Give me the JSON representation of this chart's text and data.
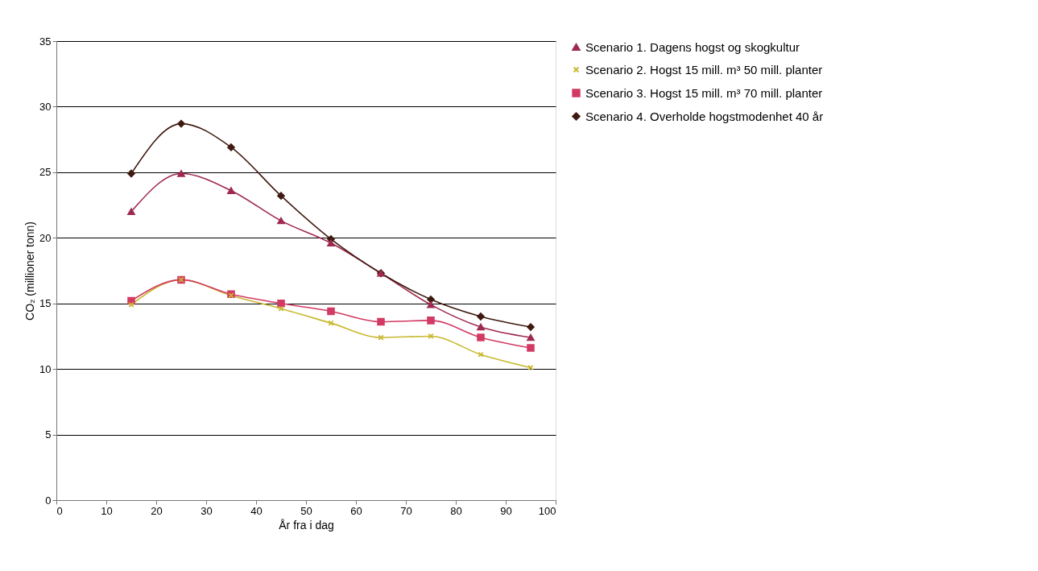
{
  "chart_data": {
    "type": "line",
    "xlabel": "År fra i dag",
    "ylabel": "CO₂ (millioner tonn)",
    "x": [
      15,
      25,
      35,
      45,
      55,
      65,
      75,
      85,
      95
    ],
    "series": [
      {
        "name": "Scenario 1. Dagens hogst og skogkultur",
        "color": "#9e2a4f",
        "marker": "triangle",
        "values": [
          22.0,
          24.9,
          23.6,
          21.3,
          19.6,
          17.3,
          14.9,
          13.2,
          12.4
        ]
      },
      {
        "name": "Scenario 2. Hogst 15 mill. m³ 50 mill. planter",
        "color": "#c8b82e",
        "marker": "cross",
        "values": [
          14.9,
          16.8,
          15.6,
          14.6,
          13.5,
          12.4,
          12.5,
          11.1,
          10.1
        ]
      },
      {
        "name": "Scenario 3. Hogst 15 mill. m³ 70 mill. planter",
        "color": "#d23a63",
        "marker": "square",
        "values": [
          15.2,
          16.8,
          15.7,
          15.0,
          14.4,
          13.6,
          13.7,
          12.4,
          11.6
        ]
      },
      {
        "name": "Scenario 4. Overholde hogstmodenhet 40 år",
        "color": "#3f1a10",
        "marker": "diamond",
        "values": [
          24.9,
          28.7,
          26.9,
          23.2,
          19.9,
          17.3,
          15.3,
          14.0,
          13.2
        ]
      }
    ],
    "xlim": [
      0,
      100
    ],
    "xticks": [
      0,
      10,
      20,
      30,
      40,
      50,
      60,
      70,
      80,
      90,
      100
    ],
    "ylim": [
      0,
      35
    ],
    "yticks": [
      0,
      5,
      10,
      15,
      20,
      25,
      30,
      35
    ],
    "grid": "y",
    "legend": "top right"
  }
}
